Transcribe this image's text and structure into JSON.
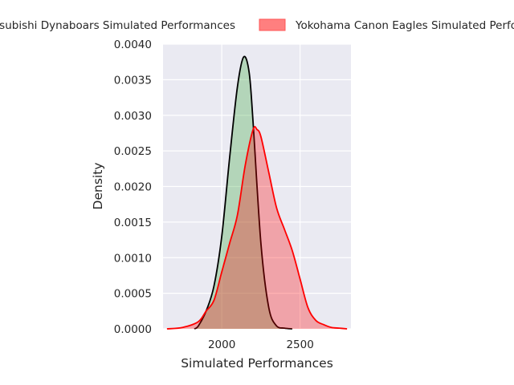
{
  "chart_data": {
    "type": "area",
    "title": "",
    "xlabel": "Simulated Performances",
    "ylabel": "Density",
    "xlim": [
      1625,
      2825
    ],
    "ylim": [
      0,
      0.004
    ],
    "x_ticks": [
      2000,
      2500
    ],
    "x_tick_labels": [
      "2000",
      "2500"
    ],
    "y_ticks": [
      0,
      0.0005,
      0.001,
      0.0015,
      0.002,
      0.0025,
      0.003,
      0.0035,
      0.004
    ],
    "y_tick_labels": [
      "0.0000",
      "0.0005",
      "0.0010",
      "0.0015",
      "0.0020",
      "0.0025",
      "0.0030",
      "0.0035",
      "0.0040"
    ],
    "grid": true,
    "legend_position": "top-center",
    "series": [
      {
        "name": "Kobelco Kobe Steelers/Mitsubishi Dynaboars Simulated Performances",
        "line_color": "#000000",
        "fill_color": "#4caf50",
        "fill_opacity": 0.35,
        "x": [
          1825,
          1850,
          1900,
          1950,
          2000,
          2050,
          2100,
          2140,
          2175,
          2200,
          2250,
          2300,
          2350,
          2400,
          2450
        ],
        "values": [
          0.0,
          4e-05,
          0.00025,
          0.0006,
          0.0013,
          0.0024,
          0.0034,
          0.00382,
          0.0036,
          0.0029,
          0.0012,
          0.0003,
          4e-05,
          1e-05,
          0.0
        ]
      },
      {
        "name": "Yokohama Canon Eagles Simulated Performances",
        "line_color": "#ff0000",
        "fill_color": "#ff0000",
        "fill_opacity": 0.3,
        "x": [
          1650,
          1750,
          1850,
          1900,
          1950,
          2000,
          2050,
          2100,
          2150,
          2200,
          2225,
          2250,
          2300,
          2350,
          2400,
          2450,
          2500,
          2550,
          2600,
          2650,
          2700,
          2750,
          2800
        ],
        "values": [
          0.0,
          2e-05,
          0.0001,
          0.00025,
          0.0004,
          0.0008,
          0.0012,
          0.0016,
          0.0023,
          0.0028,
          0.0028,
          0.0027,
          0.0022,
          0.0017,
          0.0014,
          0.0011,
          0.0007,
          0.0003,
          0.00012,
          6e-05,
          2e-05,
          1e-05,
          0.0
        ]
      }
    ]
  }
}
